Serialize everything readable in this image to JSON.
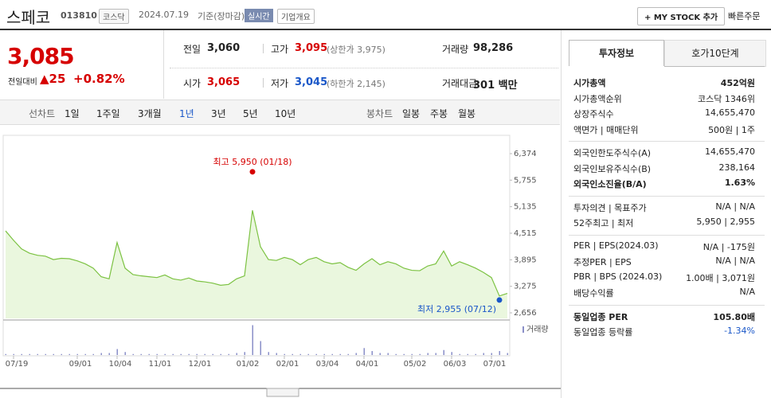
{
  "header": {
    "name": "스페코",
    "code": "013810",
    "market": "코스닥",
    "date": "2024.07.19",
    "basis": "기준(장마감)",
    "realtime": "실시간",
    "company": "기업개요",
    "mystock": "+ MY STOCK 추가",
    "quick": "빠른주문"
  },
  "quote": {
    "price": "3,085",
    "change_label": "전일대비",
    "change": "▲25",
    "change_pct": "+0.82%",
    "rows": [
      [
        {
          "label": "전일",
          "value": "3,060"
        },
        {
          "label": "고가",
          "value": "3,095",
          "extra": "(상한가 3,975)"
        },
        {
          "label": "거래량",
          "value": "98,286"
        }
      ],
      [
        {
          "label": "시가",
          "value": "3,065"
        },
        {
          "label": "저가",
          "value": "3,045",
          "extra": "(하한가 2,145)"
        },
        {
          "label": "거래대금",
          "value": "301 백만"
        }
      ]
    ]
  },
  "tabs": {
    "line_label": "선차트",
    "line": [
      "1일",
      "1주일",
      "3개월",
      "1년",
      "3년",
      "5년",
      "10년"
    ],
    "candle_label": "봉차트",
    "candle": [
      "일봉",
      "주봉",
      "월봉"
    ]
  },
  "chart_data": {
    "type": "line",
    "color": "#7cc242",
    "fill": "#eaf7de",
    "categories": [
      null,
      "07/19",
      null,
      null,
      null,
      null,
      null,
      null,
      null,
      "09/01",
      null,
      null,
      null,
      null,
      "10/04",
      null,
      null,
      null,
      null,
      "11/01",
      null,
      null,
      null,
      null,
      "12/01",
      null,
      null,
      null,
      null,
      null,
      "01/02",
      null,
      null,
      null,
      null,
      "02/01",
      null,
      null,
      null,
      null,
      "03/04",
      null,
      null,
      null,
      null,
      "04/01",
      null,
      null,
      null,
      null,
      null,
      "05/02",
      null,
      null,
      null,
      null,
      "06/03",
      null,
      null,
      null,
      null,
      "07/01",
      null,
      null
    ],
    "values": [
      4570,
      4350,
      4150,
      4050,
      4000,
      3980,
      3900,
      3930,
      3920,
      3870,
      3800,
      3700,
      3500,
      3450,
      4300,
      3700,
      3550,
      3520,
      3500,
      3480,
      3540,
      3450,
      3420,
      3470,
      3400,
      3380,
      3350,
      3300,
      3320,
      3450,
      3520,
      5050,
      4200,
      3900,
      3880,
      3950,
      3900,
      3780,
      3900,
      3950,
      3850,
      3800,
      3830,
      3720,
      3650,
      3800,
      3920,
      3780,
      3850,
      3800,
      3700,
      3650,
      3640,
      3750,
      3800,
      4100,
      3750,
      3850,
      3780,
      3700,
      3600,
      3480,
      3050,
      3110
    ],
    "ylim": [
      2526,
      6616
    ],
    "yticks": [
      {
        "value": 6374,
        "label": "6,374"
      },
      {
        "value": 5755,
        "label": "5,755"
      },
      {
        "value": 5135,
        "label": "5,135"
      },
      {
        "value": 4515,
        "label": "4,515"
      },
      {
        "value": 3895,
        "label": "3,895"
      },
      {
        "value": 3275,
        "label": "3,275"
      },
      {
        "value": 2656,
        "label": "2,656"
      }
    ],
    "annotations": [
      {
        "text": "최고 5,950 (01/18)",
        "value": 5950,
        "index": 31,
        "color": "#d60000"
      },
      {
        "text": "최저 2,955 (07/12)",
        "value": 2955,
        "index": 62,
        "color": "#1a57c8"
      }
    ],
    "volume_label": "거래량",
    "volume_color": "#8a8fc8",
    "volume": [
      1,
      1,
      1,
      1,
      1,
      1,
      1,
      1,
      1,
      1,
      1,
      1,
      2,
      2,
      6,
      3,
      1,
      1,
      1,
      1,
      1,
      1,
      1,
      1,
      1,
      1,
      1,
      1,
      1,
      2,
      3,
      30,
      14,
      3,
      2,
      1,
      1,
      1,
      1,
      1,
      1,
      1,
      1,
      1,
      2,
      7,
      4,
      2,
      2,
      1,
      1,
      1,
      1,
      2,
      2,
      5,
      3,
      1,
      1,
      1,
      2,
      2,
      4,
      2
    ],
    "y2lim": [
      0,
      32
    ]
  },
  "info": {
    "tabs": [
      "투자정보",
      "호가10단계"
    ],
    "groups": [
      [
        [
          "시가총액",
          "452억원"
        ],
        [
          "시가총액순위",
          "코스닥 1346위"
        ],
        [
          "상장주식수",
          "14,655,470"
        ],
        [
          "액면가 | 매매단위",
          "500원 | 1주"
        ]
      ],
      [
        [
          "외국인한도주식수(A)",
          "14,655,470"
        ],
        [
          "외국인보유주식수(B)",
          "238,164"
        ],
        [
          "외국인소진율(B/A)",
          "1.63%"
        ]
      ],
      [
        [
          "투자의견 | 목표주가",
          "N/A | N/A"
        ],
        [
          "52주최고 | 최저",
          "5,950 | 2,955"
        ]
      ],
      [
        [
          "PER | EPS(2024.03)",
          "N/A | -175원"
        ],
        [
          "추정PER | EPS",
          "N/A | N/A"
        ],
        [
          "PBR | BPS (2024.03)",
          "1.00배 | 3,071원"
        ],
        [
          "배당수익률",
          "N/A"
        ]
      ],
      [
        [
          "동일업종 PER",
          "105.80배"
        ],
        [
          "동일업종 등락률",
          "-1.34%"
        ]
      ]
    ]
  }
}
